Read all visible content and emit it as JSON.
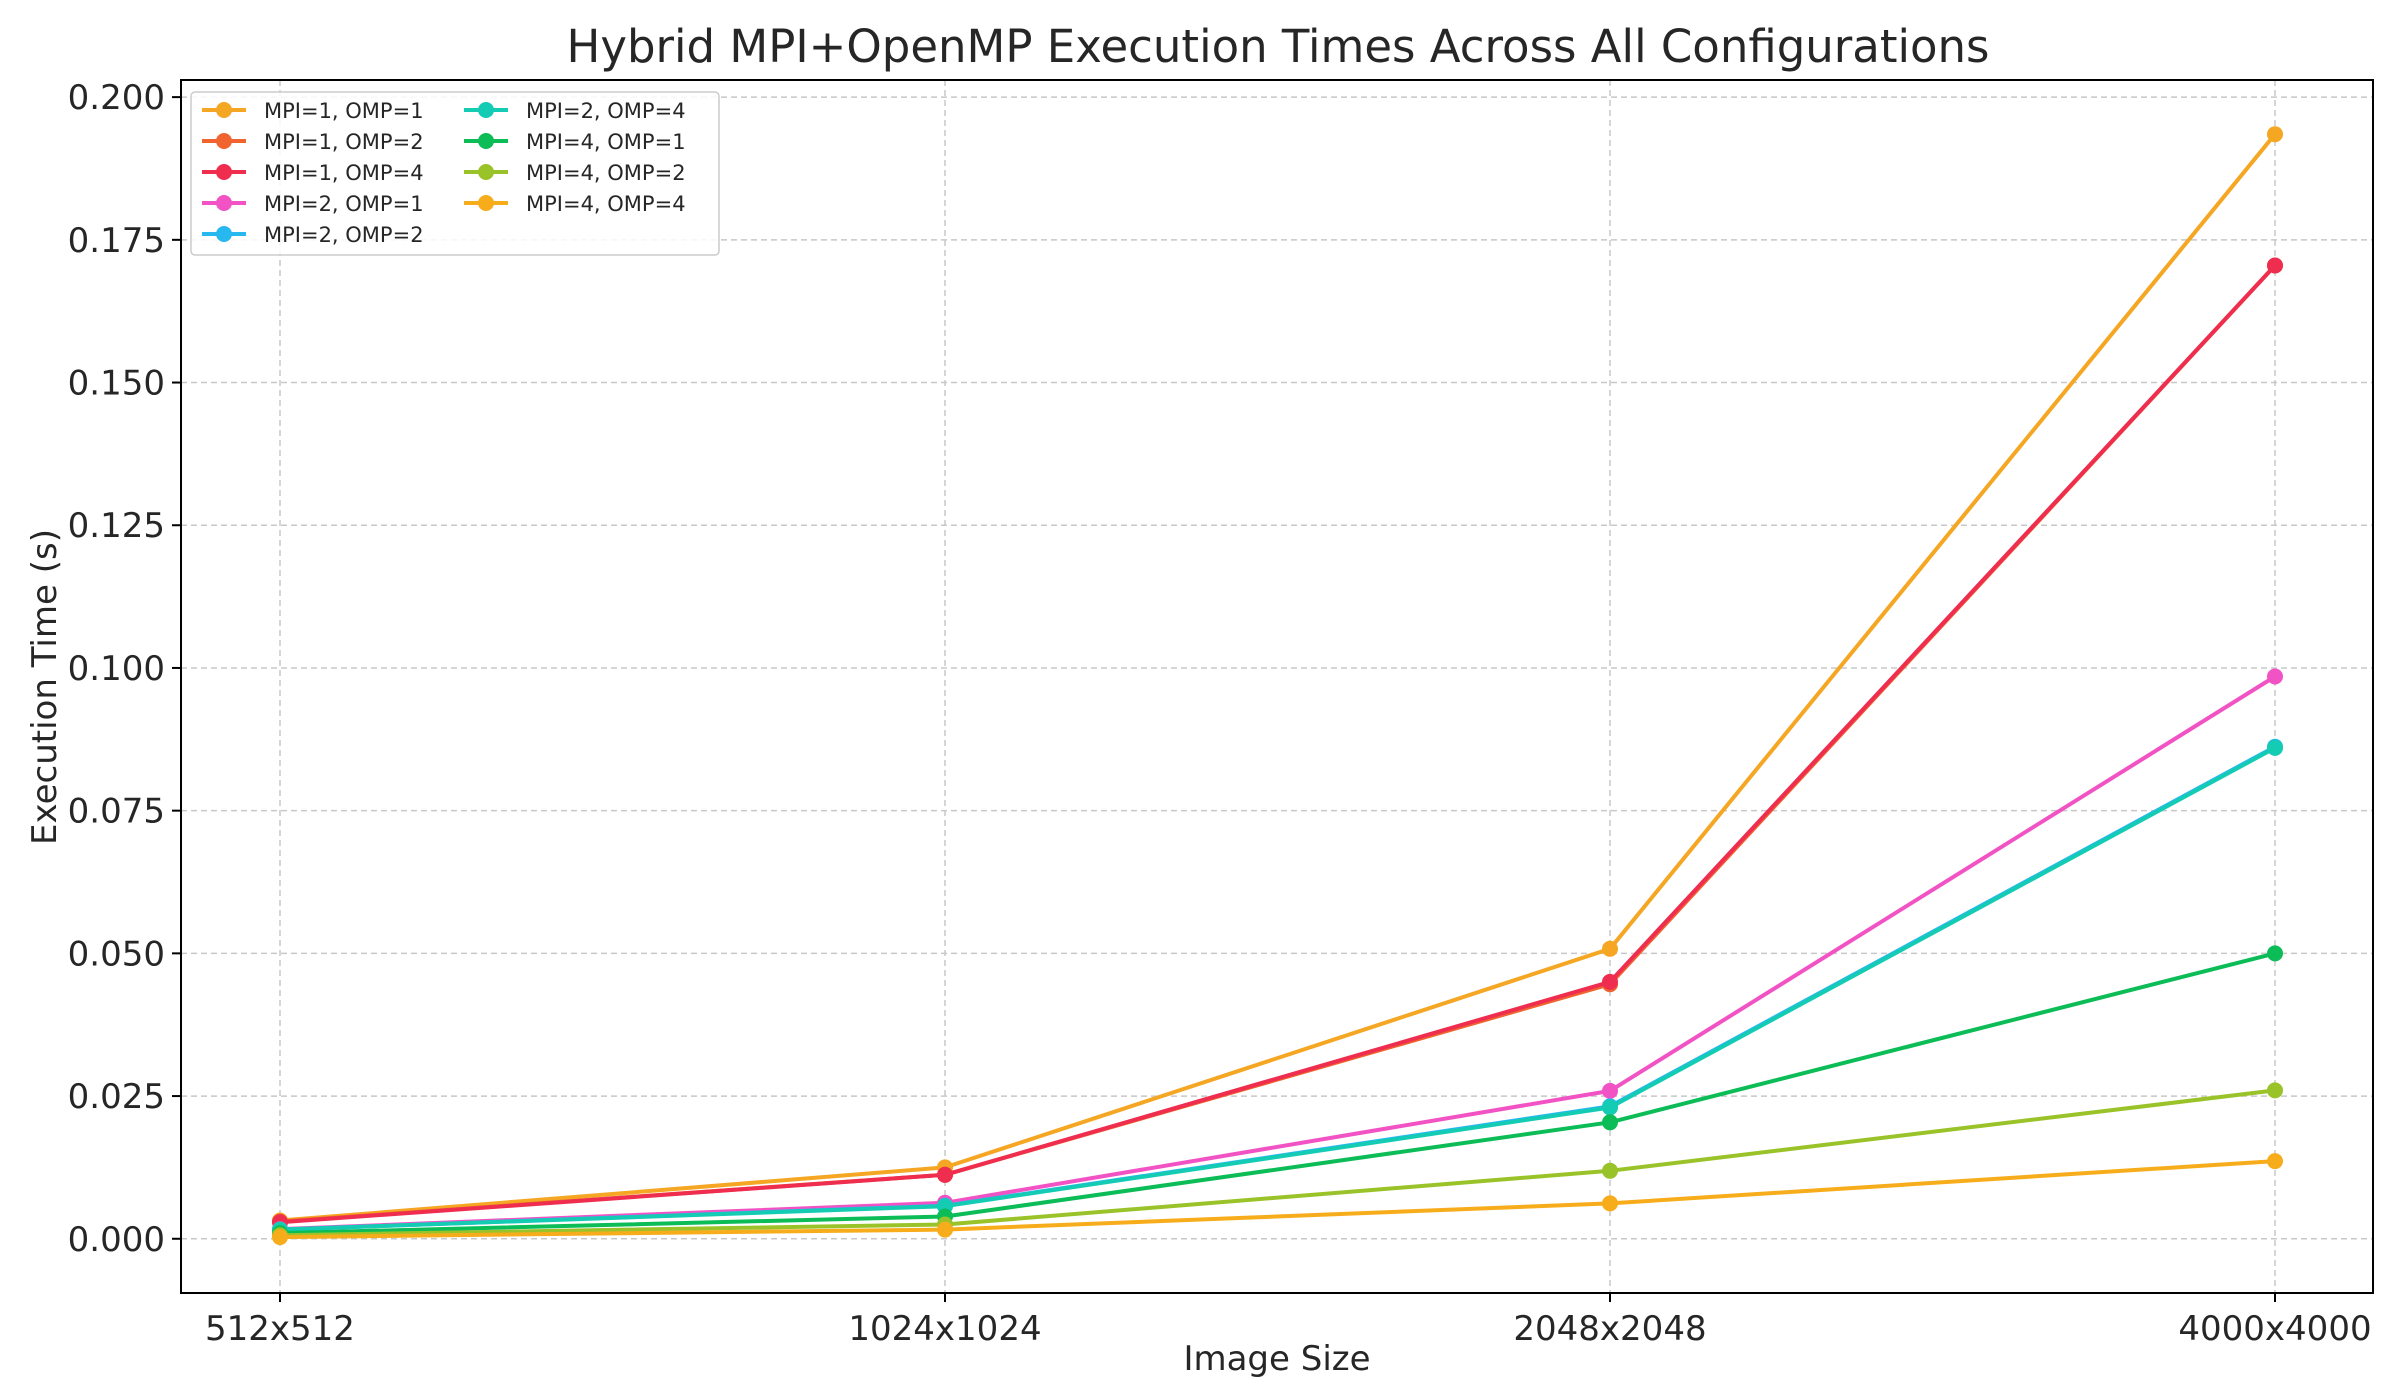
{
  "chart_data": {
    "type": "line",
    "title": "Hybrid MPI+OpenMP Execution Times Across All Configurations",
    "xlabel": "Image Size",
    "ylabel": "Execution Time (s)",
    "categories": [
      "512x512",
      "1024x1024",
      "2048x2048",
      "4000x4000"
    ],
    "ylim": [
      -0.0095,
      0.203
    ],
    "yticks": [
      "0.000",
      "0.025",
      "0.050",
      "0.075",
      "0.100",
      "0.125",
      "0.150",
      "0.175",
      "0.200"
    ],
    "grid": true,
    "legend_position": "top-left",
    "series": [
      {
        "name": "MPI=1, OMP=1",
        "color": "#f5a623",
        "values": [
          0.0032,
          0.0125,
          0.0508,
          0.1935
        ]
      },
      {
        "name": "MPI=1, OMP=2",
        "color": "#f0652f",
        "values": [
          0.003,
          0.0112,
          0.0446,
          0.1705
        ]
      },
      {
        "name": "MPI=1, OMP=4",
        "color": "#ee2d4f",
        "values": [
          0.0029,
          0.0112,
          0.045,
          0.1705
        ]
      },
      {
        "name": "MPI=2, OMP=1",
        "color": "#f253c4",
        "values": [
          0.0017,
          0.0063,
          0.0259,
          0.0985
        ]
      },
      {
        "name": "MPI=2, OMP=2",
        "color": "#27b8f0",
        "values": [
          0.0016,
          0.0058,
          0.0232,
          0.0862
        ]
      },
      {
        "name": "MPI=2, OMP=4",
        "color": "#14cbb4",
        "values": [
          0.0016,
          0.0057,
          0.023,
          0.086
        ]
      },
      {
        "name": "MPI=4, OMP=1",
        "color": "#0cbc57",
        "values": [
          0.001,
          0.0039,
          0.0204,
          0.05
        ]
      },
      {
        "name": "MPI=4, OMP=2",
        "color": "#9ac32a",
        "values": [
          0.0006,
          0.0025,
          0.0119,
          0.026
        ]
      },
      {
        "name": "MPI=4, OMP=4",
        "color": "#f7ac1c",
        "values": [
          0.0003,
          0.0016,
          0.0062,
          0.0136
        ]
      }
    ]
  }
}
